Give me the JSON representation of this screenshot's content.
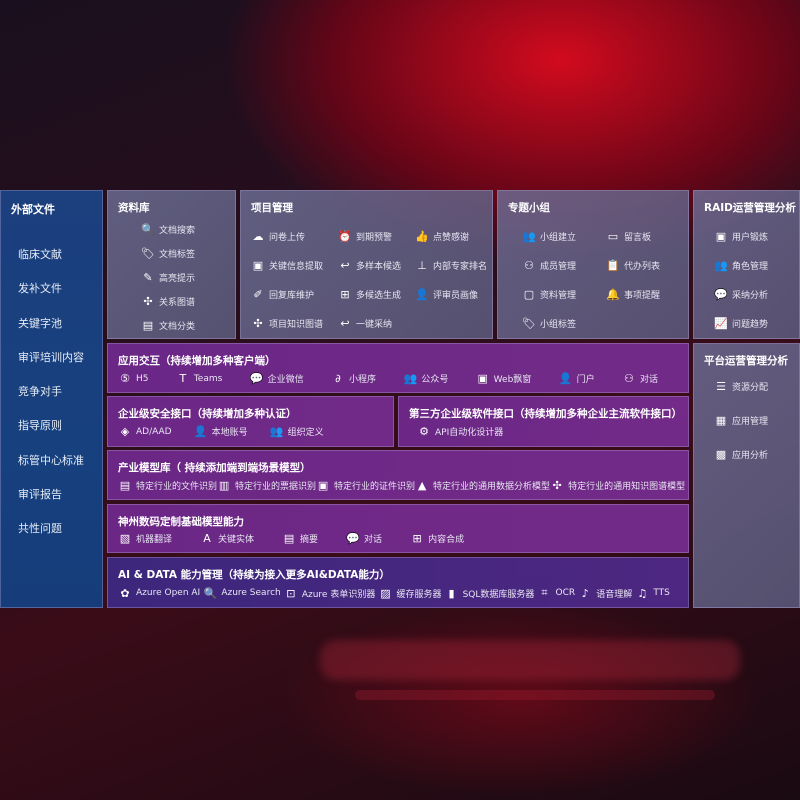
{
  "sidebar": {
    "title": "外部文件",
    "items": [
      "临床文献",
      "发补文件",
      "关键字池",
      "审评培训内容",
      "竞争对手",
      "指导原则",
      "标管中心标准",
      "审评报告",
      "共性问题"
    ]
  },
  "library": {
    "title": "资料库",
    "items": [
      {
        "label": "文档搜索",
        "icon": "doc-search"
      },
      {
        "label": "文档标签",
        "icon": "tag"
      },
      {
        "label": "高亮提示",
        "icon": "pen"
      },
      {
        "label": "关系图谱",
        "icon": "graph"
      },
      {
        "label": "文档分类",
        "icon": "doc-category"
      }
    ]
  },
  "project": {
    "title": "项目管理",
    "items": [
      {
        "label": "问卷上传",
        "icon": "cloud-upload"
      },
      {
        "label": "到期预警",
        "icon": "alarm"
      },
      {
        "label": "点赞感谢",
        "icon": "thumbs-up"
      },
      {
        "label": "关键信息提取",
        "icon": "window"
      },
      {
        "label": "多样本候选",
        "icon": "reply"
      },
      {
        "label": "内部专家排名",
        "icon": "ranking"
      },
      {
        "label": "回复库维护",
        "icon": "pencil"
      },
      {
        "label": "多候选生成",
        "icon": "puzzle"
      },
      {
        "label": "评审员画像",
        "icon": "user"
      },
      {
        "label": "项目知识图谱",
        "icon": "graph"
      },
      {
        "label": "一键采纳",
        "icon": "reply"
      }
    ]
  },
  "group": {
    "title": "专题小组",
    "items": [
      {
        "label": "小组建立",
        "icon": "users"
      },
      {
        "label": "留言板",
        "icon": "bbs"
      },
      {
        "label": "成员管理",
        "icon": "user-add"
      },
      {
        "label": "代办列表",
        "icon": "clipboard"
      },
      {
        "label": "资料管理",
        "icon": "folder"
      },
      {
        "label": "事项提醒",
        "icon": "bell"
      },
      {
        "label": "小组标签",
        "icon": "tag"
      }
    ]
  },
  "raid": {
    "title": "RAID运营管理分析",
    "items": [
      {
        "label": "用户锻炼",
        "icon": "id-card"
      },
      {
        "label": "角色管理",
        "icon": "users"
      },
      {
        "label": "采纳分析",
        "icon": "qa"
      },
      {
        "label": "问题趋势",
        "icon": "trend"
      }
    ]
  },
  "platform": {
    "title": "平台运营管理分析",
    "items": [
      {
        "label": "资源分配",
        "icon": "list"
      },
      {
        "label": "应用管理",
        "icon": "apps"
      },
      {
        "label": "应用分析",
        "icon": "analysis"
      }
    ]
  },
  "interaction": {
    "title": "应用交互（持续增加多种客户端）",
    "items": [
      {
        "label": "H5",
        "icon": "html5"
      },
      {
        "label": "Teams",
        "icon": "teams"
      },
      {
        "label": "企业微信",
        "icon": "wechat-work"
      },
      {
        "label": "小程序",
        "icon": "mini-program"
      },
      {
        "label": "公众号",
        "icon": "users"
      },
      {
        "label": "Web飘窗",
        "icon": "window"
      },
      {
        "label": "门户",
        "icon": "portal"
      },
      {
        "label": "对话",
        "icon": "chat-users"
      }
    ]
  },
  "security": {
    "title": "企业级安全接口（持续增加多种认证）",
    "items": [
      {
        "label": "AD/AAD",
        "icon": "diamond"
      },
      {
        "label": "本地账号",
        "icon": "user"
      },
      {
        "label": "组织定义",
        "icon": "org"
      }
    ]
  },
  "thirdparty": {
    "title": "第三方企业级软件接口（持续增加多种企业主流软件接口）",
    "items": [
      {
        "label": "API自动化设计器",
        "icon": "gear"
      }
    ]
  },
  "industry": {
    "title": "产业模型库（ 持续添加端到端场景模型）",
    "items": [
      {
        "label": "特定行业的文件识别",
        "icon": "file"
      },
      {
        "label": "特定行业的票据识别",
        "icon": "receipt"
      },
      {
        "label": "特定行业的证件识别",
        "icon": "id-card"
      },
      {
        "label": "特定行业的通用数据分析模型",
        "icon": "chart"
      },
      {
        "label": "特定行业的通用知识图谱模型",
        "icon": "graph"
      }
    ]
  },
  "basemodel": {
    "title": "神州数码定制基础模型能力",
    "items": [
      {
        "label": "机器翻译",
        "icon": "translate"
      },
      {
        "label": "关键实体",
        "icon": "entity"
      },
      {
        "label": "摘要",
        "icon": "doc"
      },
      {
        "label": "对话",
        "icon": "chat"
      },
      {
        "label": "内容合成",
        "icon": "puzzle"
      }
    ]
  },
  "aidata": {
    "title": "AI & DATA 能力管理（持续为接入更多AI&DATA能力）",
    "items": [
      {
        "label": "Azure Open AI",
        "icon": "openai"
      },
      {
        "label": "Azure Search",
        "icon": "doc-search"
      },
      {
        "label": "Azure 表单识别器",
        "icon": "form"
      },
      {
        "label": "缓存服务器",
        "icon": "cache"
      },
      {
        "label": "SQL数据库服务器",
        "icon": "database"
      },
      {
        "label": "OCR",
        "icon": "ocr"
      },
      {
        "label": "语音理解",
        "icon": "voice"
      },
      {
        "label": "TTS",
        "icon": "tts"
      }
    ]
  }
}
